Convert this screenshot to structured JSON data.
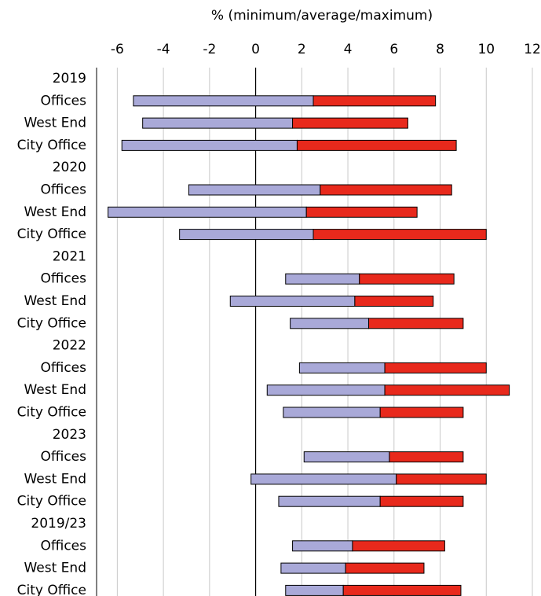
{
  "chart_data": {
    "type": "floating-bar",
    "x_label": "% (minimum/average/maximum)",
    "categories": [
      "2019",
      "Offices",
      "West End",
      "City Office",
      "2020",
      "Offices",
      "West End",
      "City Office",
      "2021",
      "Offices",
      "West End",
      "City Office",
      "2022",
      "Offices",
      "West End",
      "City Office",
      "2023",
      "Offices",
      "West End",
      "City Office",
      "2019/23",
      "Offices",
      "West End",
      "City Office"
    ],
    "min": [
      null,
      -5.3,
      -4.9,
      -5.8,
      null,
      -2.9,
      -6.4,
      -3.3,
      null,
      1.3,
      -1.1,
      1.5,
      null,
      1.9,
      0.5,
      1.2,
      null,
      2.1,
      -0.2,
      1.0,
      null,
      1.6,
      1.1,
      1.3
    ],
    "avg": [
      null,
      2.5,
      1.6,
      1.8,
      null,
      2.8,
      2.2,
      2.5,
      null,
      4.5,
      4.3,
      4.9,
      null,
      5.6,
      5.6,
      5.4,
      null,
      5.8,
      6.1,
      5.4,
      null,
      4.2,
      3.9,
      3.8
    ],
    "max": [
      null,
      7.8,
      6.6,
      8.7,
      null,
      8.5,
      7.0,
      10.0,
      null,
      8.6,
      7.7,
      9.0,
      null,
      10.0,
      11.0,
      9.0,
      null,
      9.0,
      10.0,
      9.0,
      null,
      8.2,
      7.3,
      8.9
    ],
    "colors": [
      "#a9a9d8",
      "#e8291c"
    ],
    "xlim": [
      -7,
      12
    ],
    "xticks": [
      -6,
      -4,
      -2,
      0,
      2,
      4,
      6,
      8,
      10,
      12
    ],
    "grid": true
  }
}
